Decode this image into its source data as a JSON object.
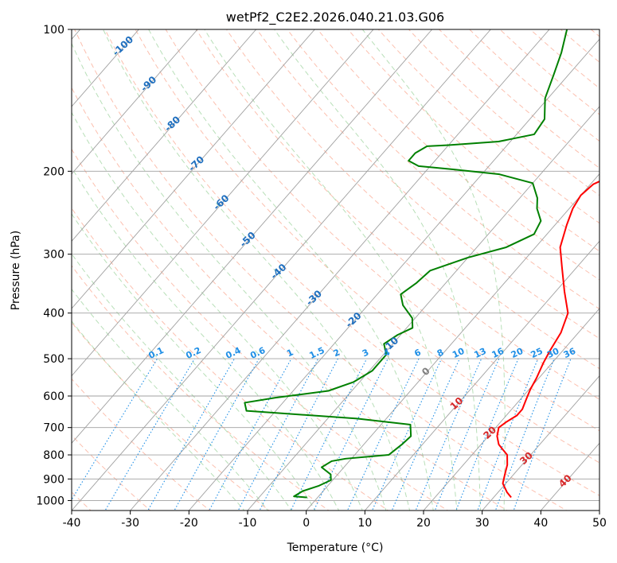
{
  "chart_data": {
    "type": "line",
    "title": "wetPf2_C2E2.2026.040.21.03.G06",
    "xlabel": "Temperature (°C)",
    "ylabel": "Pressure (hPa)",
    "xlim": [
      -40,
      50
    ],
    "ylim": [
      1050,
      100
    ],
    "y_scale": "log",
    "grid": true,
    "x_ticks": [
      -40,
      -30,
      -20,
      -10,
      0,
      10,
      20,
      30,
      40,
      50
    ],
    "y_ticks": [
      100,
      200,
      300,
      400,
      500,
      600,
      700,
      800,
      900,
      1000
    ],
    "colors": {
      "temperature": "#ff0000",
      "dewpoint": "#008000",
      "dry_adiabat": "#fa8c6e",
      "moist_adiabat": "#7ec47e",
      "mixing_ratio": "#1f8fe6",
      "isotherm": "#a0a0a0",
      "label_temp_cold": "#1f6fbf",
      "label_temp_warm": "#d62728",
      "label_zero": "#808080"
    },
    "series": [
      {
        "key": "temperature",
        "points": [
          [
            33.0,
            985
          ],
          [
            31.5,
            960
          ],
          [
            29.5,
            920
          ],
          [
            28.5,
            880
          ],
          [
            27.5,
            840
          ],
          [
            26.0,
            800
          ],
          [
            24.5,
            780
          ],
          [
            23.0,
            760
          ],
          [
            21.5,
            730
          ],
          [
            20.5,
            700
          ],
          [
            21.0,
            680
          ],
          [
            21.8,
            660
          ],
          [
            21.8,
            640
          ],
          [
            21.0,
            610
          ],
          [
            20.2,
            580
          ],
          [
            19.6,
            550
          ],
          [
            18.5,
            510
          ],
          [
            17.8,
            480
          ],
          [
            17.0,
            440
          ],
          [
            15.3,
            400
          ],
          [
            11.5,
            360
          ],
          [
            7.5,
            320
          ],
          [
            4.2,
            290
          ],
          [
            2.0,
            260
          ],
          [
            0.6,
            240
          ],
          [
            0.0,
            225
          ],
          [
            0.5,
            213
          ],
          [
            2.5,
            204
          ],
          [
            5.5,
            196
          ],
          [
            6.4,
            189
          ],
          [
            6.0,
            170
          ],
          [
            5.8,
            150
          ],
          [
            5.8,
            130
          ],
          [
            6.5,
            115
          ],
          [
            9.0,
            100
          ]
        ]
      },
      {
        "key": "dewpoint",
        "points": [
          [
            -1.8,
            985
          ],
          [
            -4.2,
            980
          ],
          [
            -3.5,
            955
          ],
          [
            -1.5,
            930
          ],
          [
            -0.3,
            905
          ],
          [
            -1.2,
            880
          ],
          [
            -3.8,
            850
          ],
          [
            -3.0,
            825
          ],
          [
            -1.0,
            815
          ],
          [
            5.8,
            800
          ],
          [
            6.5,
            760
          ],
          [
            6.8,
            730
          ],
          [
            5.0,
            690
          ],
          [
            -5.0,
            670
          ],
          [
            -25.0,
            645
          ],
          [
            -26.5,
            620
          ],
          [
            -22.0,
            605
          ],
          [
            -14.0,
            585
          ],
          [
            -11.0,
            560
          ],
          [
            -9.5,
            530
          ],
          [
            -9.5,
            490
          ],
          [
            -11.5,
            465
          ],
          [
            -10.5,
            445
          ],
          [
            -9.0,
            430
          ],
          [
            -10.5,
            410
          ],
          [
            -14.0,
            385
          ],
          [
            -16.0,
            365
          ],
          [
            -15.0,
            345
          ],
          [
            -14.5,
            325
          ],
          [
            -10.0,
            305
          ],
          [
            -5.0,
            290
          ],
          [
            -2.2,
            272
          ],
          [
            -3.0,
            255
          ],
          [
            -5.5,
            240
          ],
          [
            -7.0,
            228
          ],
          [
            -10.0,
            212
          ],
          [
            -17.0,
            203
          ],
          [
            -26.0,
            198
          ],
          [
            -32.0,
            195
          ],
          [
            -34.5,
            190
          ],
          [
            -34.5,
            183
          ],
          [
            -33.5,
            177
          ],
          [
            -30.0,
            176
          ],
          [
            -22.0,
            173
          ],
          [
            -17.0,
            167
          ],
          [
            -17.5,
            155
          ],
          [
            -20.5,
            140
          ],
          [
            -22.5,
            125
          ],
          [
            -24.5,
            112
          ],
          [
            -27.0,
            100
          ]
        ]
      }
    ],
    "annotations": {
      "mixing_ratio_labels": [
        "0.1",
        "0.2",
        "0.4",
        "0.6",
        "1",
        "1.5",
        "2",
        "3",
        "4",
        "6",
        "8",
        "10",
        "13",
        "16",
        "20",
        "25",
        "30",
        "36"
      ],
      "mixing_ratio_values": [
        0.1,
        0.2,
        0.4,
        0.6,
        1,
        1.5,
        2,
        3,
        4,
        6,
        8,
        10,
        13,
        16,
        20,
        25,
        30,
        36
      ],
      "isotherm_labels": [
        {
          "text": "-100",
          "t": -100,
          "p": 108
        },
        {
          "text": "-90",
          "t": -90,
          "p": 130
        },
        {
          "text": "-80",
          "t": -80,
          "p": 158
        },
        {
          "text": "-70",
          "t": -70,
          "p": 192
        },
        {
          "text": "-60",
          "t": -60,
          "p": 232
        },
        {
          "text": "-50",
          "t": -50,
          "p": 278
        },
        {
          "text": "-40",
          "t": -40,
          "p": 325
        },
        {
          "text": "-30",
          "t": -30,
          "p": 370
        },
        {
          "text": "-20",
          "t": -20,
          "p": 412
        },
        {
          "text": "-10",
          "t": -10,
          "p": 465
        },
        {
          "text": "0",
          "t": 0,
          "p": 530
        },
        {
          "text": "10",
          "t": 10,
          "p": 620
        },
        {
          "text": "20",
          "t": 20,
          "p": 715
        },
        {
          "text": "30",
          "t": 30,
          "p": 810
        },
        {
          "text": "40",
          "t": 40,
          "p": 905
        }
      ]
    }
  }
}
